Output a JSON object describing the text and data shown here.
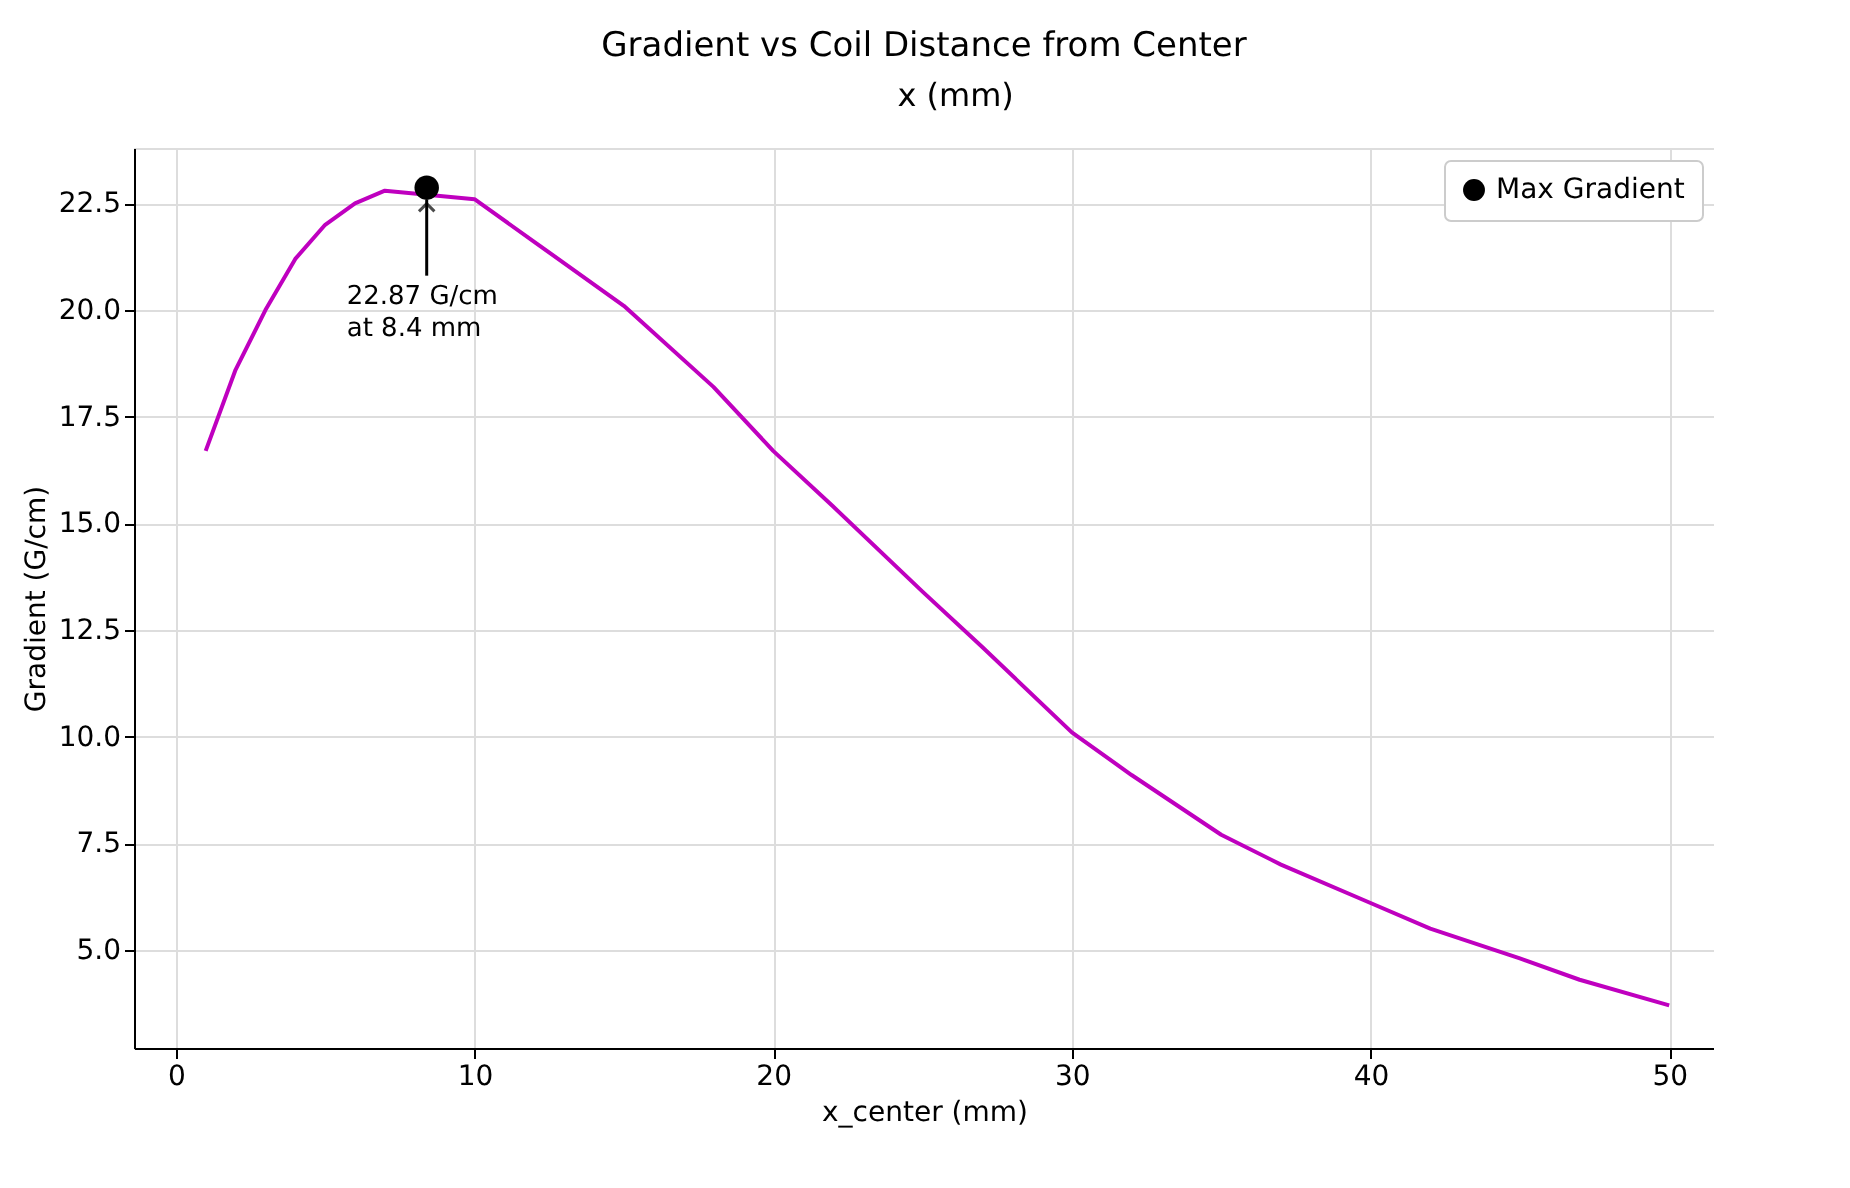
{
  "chart_data": {
    "type": "line",
    "title": "Gradient vs Coil Distance from Center",
    "xlabel": "x_center (mm)",
    "ylabel": "Gradient (G/cm)",
    "xlim": [
      -1.4,
      51.5
    ],
    "ylim": [
      2.7,
      23.8
    ],
    "xticks": [
      0,
      10,
      20,
      30,
      40,
      50
    ],
    "yticks": [
      {
        "value": 5,
        "label": "5.0"
      },
      7.5,
      {
        "value": 10,
        "label": "10.0"
      },
      12.5,
      {
        "value": 15,
        "label": "15.0"
      },
      17.5,
      {
        "value": 20,
        "label": "20.0"
      },
      22.5
    ],
    "grid": true,
    "legend": "top right",
    "series": [
      {
        "color": "#bf00bf",
        "x": [
          1,
          2,
          3,
          4,
          5,
          6,
          7,
          10,
          12,
          15,
          18,
          20,
          22,
          25,
          27,
          30,
          32,
          35,
          37,
          40,
          42,
          45,
          47,
          50
        ],
        "values": [
          16.7,
          18.6,
          20.0,
          21.2,
          22.0,
          22.5,
          22.8,
          22.6,
          21.6,
          20.1,
          18.2,
          16.7,
          15.4,
          13.4,
          12.1,
          10.1,
          9.1,
          7.7,
          7.0,
          6.1,
          5.5,
          4.8,
          4.3,
          3.7
        ]
      },
      {
        "type": "scatter",
        "name": "Max Gradient",
        "color": "#000000",
        "marker": "circle",
        "x": [
          8.4
        ],
        "values": [
          22.87
        ]
      }
    ],
    "annotations": [
      {
        "text": "22.87 G/cm\nat 8.4 mm",
        "x": 8.4,
        "y": 22.87
      },
      "x (mm)"
    ]
  }
}
